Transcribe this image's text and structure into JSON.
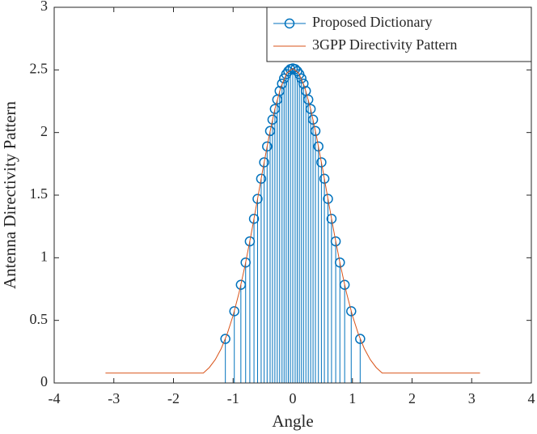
{
  "chart_data": {
    "type": "stem",
    "xlabel": "Angle",
    "ylabel": "Antenna Directivity Pattern",
    "xlim": [
      -4,
      4
    ],
    "ylim": [
      0,
      3
    ],
    "xticks": [
      -4,
      -3,
      -2,
      -1,
      0,
      1,
      2,
      3,
      4
    ],
    "yticks": [
      0,
      0.5,
      1,
      1.5,
      2,
      2.5,
      3
    ],
    "legend": "northeast",
    "series": [
      {
        "name": "Proposed Dictionary",
        "type": "stem",
        "color": "#0072bd",
        "x": [
          -1.13,
          -0.98,
          -0.87,
          -0.79,
          -0.72,
          -0.65,
          -0.59,
          -0.53,
          -0.48,
          -0.43,
          -0.38,
          -0.34,
          -0.3,
          -0.26,
          -0.22,
          -0.18,
          -0.145,
          -0.11,
          -0.075,
          -0.04,
          0,
          0.04,
          0.075,
          0.11,
          0.145,
          0.18,
          0.22,
          0.26,
          0.3,
          0.34,
          0.38,
          0.43,
          0.48,
          0.53,
          0.59,
          0.65,
          0.72,
          0.79,
          0.87,
          0.98,
          1.13
        ],
        "values": [
          0.352,
          0.573,
          0.784,
          0.962,
          1.131,
          1.311,
          1.47,
          1.631,
          1.762,
          1.889,
          2.012,
          2.103,
          2.188,
          2.263,
          2.332,
          2.39,
          2.432,
          2.466,
          2.49,
          2.506,
          2.512,
          2.506,
          2.49,
          2.466,
          2.432,
          2.39,
          2.332,
          2.263,
          2.188,
          2.103,
          2.012,
          1.889,
          1.762,
          1.631,
          1.47,
          1.311,
          1.131,
          0.962,
          0.784,
          0.573,
          0.352
        ]
      },
      {
        "name": "3GPP Directivity Pattern",
        "type": "line",
        "color": "#d95319",
        "x": [
          -3.14,
          -1.5,
          -1.4,
          -1.3,
          -1.2,
          -1.1,
          -1.0,
          -0.9,
          -0.8,
          -0.7,
          -0.6,
          -0.5,
          -0.4,
          -0.3,
          -0.2,
          -0.1,
          0,
          0.1,
          0.2,
          0.3,
          0.4,
          0.5,
          0.6,
          0.7,
          0.8,
          0.9,
          1.0,
          1.1,
          1.2,
          1.3,
          1.4,
          1.5,
          3.14
        ],
        "values": [
          0.079,
          0.079,
          0.123,
          0.186,
          0.274,
          0.391,
          0.539,
          0.722,
          0.938,
          1.182,
          1.444,
          1.71,
          1.964,
          2.188,
          2.362,
          2.474,
          2.512,
          2.474,
          2.362,
          2.188,
          1.964,
          1.71,
          1.444,
          1.182,
          0.938,
          0.722,
          0.539,
          0.391,
          0.274,
          0.186,
          0.123,
          0.079,
          0.079
        ]
      }
    ]
  }
}
